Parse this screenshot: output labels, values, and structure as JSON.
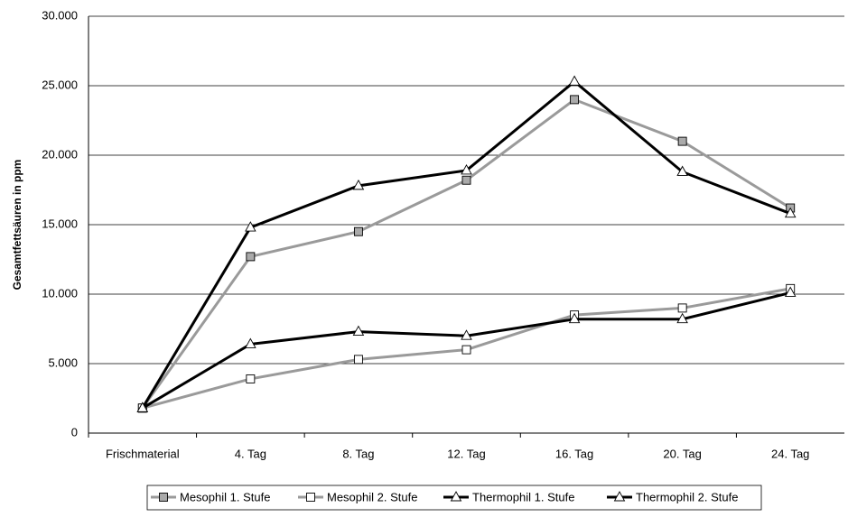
{
  "chart_data": {
    "type": "line",
    "y_label": "Gesamtfettsäuren in ppm",
    "categories": [
      "Frischmaterial",
      "4. Tag",
      "8. Tag",
      "12. Tag",
      "16. Tag",
      "20. Tag",
      "24. Tag"
    ],
    "series": [
      {
        "name": "Mesophil 1. Stufe",
        "color": "#9a9a9a",
        "marker": "square",
        "marker_fill": "#aaaaaa",
        "values": [
          1800,
          12700,
          14500,
          18200,
          24000,
          21000,
          16200
        ]
      },
      {
        "name": "Mesophil 2. Stufe",
        "color": "#9a9a9a",
        "marker": "square",
        "marker_fill": "#ffffff",
        "values": [
          1800,
          3900,
          5300,
          6000,
          8500,
          9000,
          10400
        ]
      },
      {
        "name": "Thermophil 1. Stufe",
        "color": "#000000",
        "marker": "triangle",
        "marker_fill": "#ffffff",
        "values": [
          1800,
          14800,
          17800,
          18900,
          25300,
          18800,
          15800
        ]
      },
      {
        "name": "Thermophil 2. Stufe",
        "color": "#000000",
        "marker": "triangle",
        "marker_fill": "#ffffff",
        "values": [
          1800,
          6400,
          7300,
          7000,
          8200,
          8200,
          10100
        ]
      }
    ],
    "ylim": [
      0,
      30000
    ],
    "yticks": [
      0,
      {
        "value": 5000,
        "label": "5.000"
      },
      {
        "value": 10000,
        "label": "10.000"
      },
      {
        "value": 15000,
        "label": "15.000"
      },
      {
        "value": 20000,
        "label": "20.000"
      },
      {
        "value": 25000,
        "label": "25.000"
      },
      {
        "value": 30000,
        "label": "30.000"
      }
    ],
    "grid": true,
    "legend": "bottom"
  }
}
